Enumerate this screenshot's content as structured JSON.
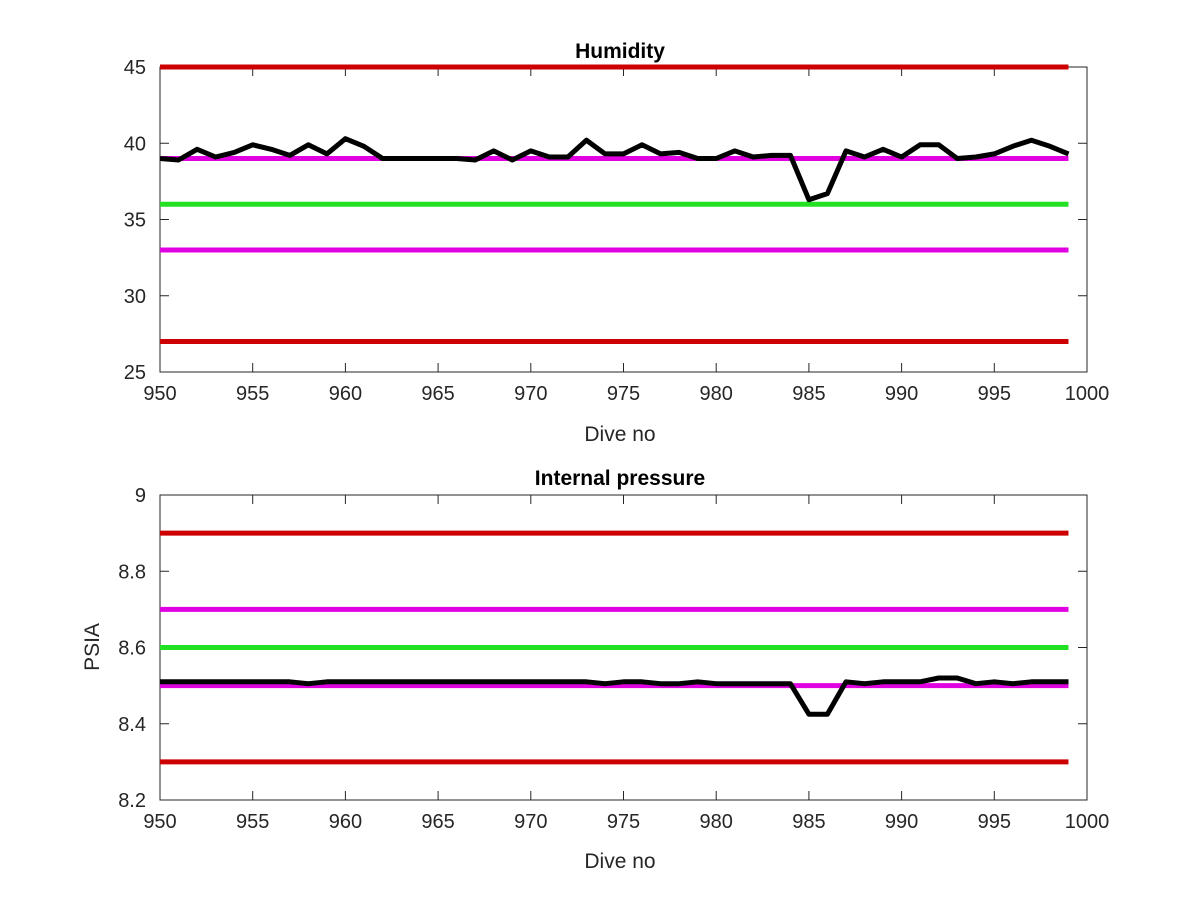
{
  "chart_data": [
    {
      "type": "line",
      "title": "Humidity",
      "xlabel": "Dive no",
      "ylabel": "",
      "xlim": [
        950,
        1000
      ],
      "ylim": [
        25,
        45
      ],
      "xticks": [
        950,
        955,
        960,
        965,
        970,
        975,
        980,
        985,
        990,
        995,
        1000
      ],
      "yticks": [
        25,
        30,
        35,
        40,
        45
      ],
      "grid": false,
      "legend": "none",
      "threshold_lines": [
        {
          "value": 45,
          "x_range": [
            950,
            999
          ],
          "color": "#cc0000"
        },
        {
          "value": 39,
          "x_range": [
            950,
            999
          ],
          "color": "#e000e0"
        },
        {
          "value": 36,
          "x_range": [
            950,
            999
          ],
          "color": "#22e022"
        },
        {
          "value": 33,
          "x_range": [
            950,
            999
          ],
          "color": "#e000e0"
        },
        {
          "value": 27,
          "x_range": [
            950,
            999
          ],
          "color": "#cc0000"
        }
      ],
      "series": [
        {
          "color": "#000000",
          "x": [
            950,
            951,
            952,
            953,
            954,
            955,
            956,
            957,
            958,
            959,
            960,
            961,
            962,
            963,
            964,
            965,
            966,
            967,
            968,
            969,
            970,
            971,
            972,
            973,
            974,
            975,
            976,
            977,
            978,
            979,
            980,
            981,
            982,
            983,
            984,
            985,
            986,
            987,
            988,
            989,
            990,
            991,
            992,
            993,
            994,
            995,
            996,
            997,
            998,
            999
          ],
          "values": [
            39.0,
            38.9,
            39.6,
            39.1,
            39.4,
            39.9,
            39.6,
            39.2,
            39.9,
            39.3,
            40.3,
            39.8,
            39.0,
            39.0,
            39.0,
            39.0,
            39.0,
            38.9,
            39.5,
            38.9,
            39.5,
            39.1,
            39.1,
            40.2,
            39.3,
            39.3,
            39.9,
            39.3,
            39.4,
            39.0,
            39.0,
            39.5,
            39.1,
            39.2,
            39.2,
            36.3,
            36.7,
            39.5,
            39.1,
            39.6,
            39.1,
            39.9,
            39.9,
            39.0,
            39.1,
            39.3,
            39.8,
            40.2,
            39.8,
            39.3
          ]
        }
      ]
    },
    {
      "type": "line",
      "title": "Internal pressure",
      "xlabel": "Dive no",
      "ylabel": "PSIA",
      "xlim": [
        950,
        1000
      ],
      "ylim": [
        8.2,
        9.0
      ],
      "xticks": [
        950,
        955,
        960,
        965,
        970,
        975,
        980,
        985,
        990,
        995,
        1000
      ],
      "yticks": [
        8.2,
        8.4,
        8.6,
        8.8,
        9
      ],
      "yticklabels": [
        "8.2",
        "8.4",
        "8.6",
        "8.8",
        "9"
      ],
      "grid": false,
      "legend": "none",
      "threshold_lines": [
        {
          "value": 8.9,
          "x_range": [
            950,
            999
          ],
          "color": "#cc0000"
        },
        {
          "value": 8.7,
          "x_range": [
            950,
            999
          ],
          "color": "#e000e0"
        },
        {
          "value": 8.6,
          "x_range": [
            950,
            999
          ],
          "color": "#22e022"
        },
        {
          "value": 8.5,
          "x_range": [
            950,
            999
          ],
          "color": "#e000e0"
        },
        {
          "value": 8.3,
          "x_range": [
            950,
            999
          ],
          "color": "#cc0000"
        }
      ],
      "series": [
        {
          "color": "#000000",
          "x": [
            950,
            951,
            952,
            953,
            954,
            955,
            956,
            957,
            958,
            959,
            960,
            961,
            962,
            963,
            964,
            965,
            966,
            967,
            968,
            969,
            970,
            971,
            972,
            973,
            974,
            975,
            976,
            977,
            978,
            979,
            980,
            981,
            982,
            983,
            984,
            985,
            986,
            987,
            988,
            989,
            990,
            991,
            992,
            993,
            994,
            995,
            996,
            997,
            998,
            999
          ],
          "values": [
            8.51,
            8.51,
            8.51,
            8.51,
            8.51,
            8.51,
            8.51,
            8.51,
            8.505,
            8.51,
            8.51,
            8.51,
            8.51,
            8.51,
            8.51,
            8.51,
            8.51,
            8.51,
            8.51,
            8.51,
            8.51,
            8.51,
            8.51,
            8.51,
            8.505,
            8.51,
            8.51,
            8.505,
            8.505,
            8.51,
            8.505,
            8.505,
            8.505,
            8.505,
            8.505,
            8.425,
            8.425,
            8.51,
            8.505,
            8.51,
            8.51,
            8.51,
            8.52,
            8.52,
            8.505,
            8.51,
            8.505,
            8.51,
            8.51,
            8.51
          ]
        }
      ]
    }
  ]
}
